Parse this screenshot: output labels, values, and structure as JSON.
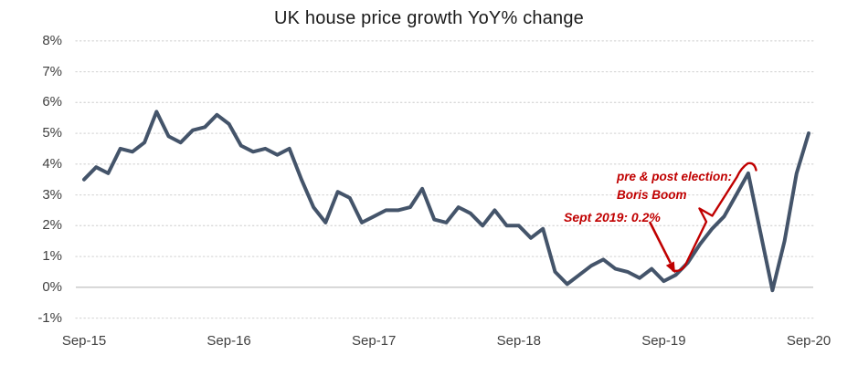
{
  "title": "UK house price growth YoY% change",
  "colors": {
    "series_line": "#44546A",
    "annotation_red": "#C00000",
    "axis_text": "#404040",
    "title_text": "#1A1A1A",
    "gridline": "#D9D9D9",
    "zero_axis_line": "#C6C6C6",
    "background": "#FFFFFF"
  },
  "annotations": {
    "election_line1": "pre & post election:",
    "election_line2": "Boris Boom",
    "sept2019": "Sept 2019: 0.2%"
  },
  "chart_data": {
    "type": "line",
    "title": "UK house price growth YoY% change",
    "xlabel": "",
    "ylabel": "",
    "ylim": [
      -1,
      8
    ],
    "grid": "horizontal dotted gridlines at each 1%, solid line at 0%",
    "legend": "none",
    "y_tick_values": [
      8,
      7,
      6,
      5,
      4,
      3,
      2,
      1,
      0,
      -1
    ],
    "y_tick_labels": [
      "8%",
      "7%",
      "6%",
      "5%",
      "4%",
      "3%",
      "2%",
      "1%",
      "0%",
      "-1%"
    ],
    "x_tick_labels": [
      "Sep-15",
      "Sep-16",
      "Sep-17",
      "Sep-18",
      "Sep-19",
      "Sep-20"
    ],
    "x_tick_month_indices": [
      0,
      12,
      24,
      36,
      48,
      60
    ],
    "series": [
      {
        "name": "UK house price growth YoY%",
        "x": [
          "Sep-15",
          "Oct-15",
          "Nov-15",
          "Dec-15",
          "Jan-16",
          "Feb-16",
          "Mar-16",
          "Apr-16",
          "May-16",
          "Jun-16",
          "Jul-16",
          "Aug-16",
          "Sep-16",
          "Oct-16",
          "Nov-16",
          "Dec-16",
          "Jan-17",
          "Feb-17",
          "Mar-17",
          "Apr-17",
          "May-17",
          "Jun-17",
          "Jul-17",
          "Aug-17",
          "Sep-17",
          "Oct-17",
          "Nov-17",
          "Dec-17",
          "Jan-18",
          "Feb-18",
          "Mar-18",
          "Apr-18",
          "May-18",
          "Jun-18",
          "Jul-18",
          "Aug-18",
          "Sep-18",
          "Oct-18",
          "Nov-18",
          "Dec-18",
          "Jan-19",
          "Feb-19",
          "Mar-19",
          "Apr-19",
          "May-19",
          "Jun-19",
          "Jul-19",
          "Aug-19",
          "Sep-19",
          "Oct-19",
          "Nov-19",
          "Dec-19",
          "Jan-20",
          "Feb-20",
          "Mar-20",
          "Apr-20",
          "May-20",
          "Jun-20",
          "Jul-20",
          "Aug-20",
          "Sep-20"
        ],
        "values": [
          3.5,
          3.9,
          3.7,
          4.5,
          4.4,
          4.7,
          5.7,
          4.9,
          4.7,
          5.1,
          5.2,
          5.6,
          5.3,
          4.6,
          4.4,
          4.5,
          4.3,
          4.5,
          3.5,
          2.6,
          2.1,
          3.1,
          2.9,
          2.1,
          2.3,
          2.5,
          2.5,
          2.6,
          3.2,
          2.2,
          2.1,
          2.6,
          2.4,
          2.0,
          2.5,
          2.0,
          2.0,
          1.6,
          1.9,
          0.5,
          0.1,
          0.4,
          0.7,
          0.9,
          0.6,
          0.5,
          0.3,
          0.6,
          0.2,
          0.4,
          0.8,
          1.4,
          1.9,
          2.3,
          3.0,
          3.7,
          1.8,
          -0.1,
          1.5,
          3.7,
          5.0
        ]
      }
    ],
    "annotations": [
      {
        "text": "Sept 2019: 0.2%",
        "target_x": "Sep-19",
        "target_value": 0.2,
        "style": "red arrow pointing to data point"
      },
      {
        "text": "pre & post election: Boris Boom",
        "target": "rising segment Oct-19 to Apr-20",
        "style": "red rotated curly brace along the line"
      }
    ]
  }
}
